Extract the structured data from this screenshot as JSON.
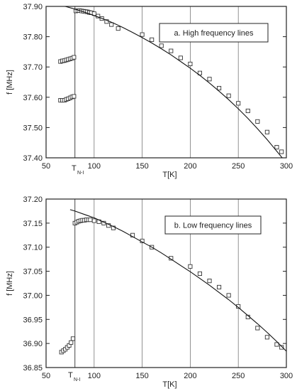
{
  "chart_data": [
    {
      "type": "scatter",
      "title": "",
      "legend": "a. High frequency lines",
      "xlabel": "T[K]",
      "ylabel": "f [MHz]",
      "xlim": [
        50,
        300
      ],
      "ylim": [
        37.4,
        37.9
      ],
      "xticks": [
        "50",
        "100",
        "150",
        "200",
        "250",
        "300"
      ],
      "yticks": [
        "37.40",
        "37.50",
        "37.60",
        "37.70",
        "37.80",
        "37.90"
      ],
      "grid": "vertical",
      "transition_label": {
        "main": "T",
        "sub": "N-I"
      },
      "series": [
        {
          "type": "scatter",
          "points": [
            [
              65,
              37.59
            ],
            [
              67,
              37.59
            ],
            [
              69,
              37.59
            ],
            [
              71,
              37.593
            ],
            [
              73,
              37.595
            ],
            [
              75,
              37.598
            ],
            [
              77,
              37.601
            ],
            [
              79,
              37.603
            ],
            [
              65,
              37.718
            ],
            [
              67,
              37.72
            ],
            [
              69,
              37.721
            ],
            [
              71,
              37.723
            ],
            [
              73,
              37.725
            ],
            [
              75,
              37.727
            ],
            [
              77,
              37.729
            ],
            [
              79,
              37.732
            ],
            [
              81,
              37.885
            ],
            [
              83,
              37.886
            ],
            [
              85,
              37.886
            ],
            [
              87,
              37.885
            ],
            [
              89,
              37.884
            ],
            [
              91,
              37.883
            ],
            [
              93,
              37.882
            ],
            [
              95,
              37.88
            ],
            [
              97,
              37.879
            ],
            [
              100,
              37.876
            ],
            [
              104,
              37.868
            ],
            [
              108,
              37.86
            ],
            [
              113,
              37.85
            ],
            [
              118,
              37.84
            ],
            [
              125,
              37.827
            ],
            [
              150,
              37.807
            ],
            [
              160,
              37.79
            ],
            [
              170,
              37.77
            ],
            [
              180,
              37.753
            ],
            [
              190,
              37.73
            ],
            [
              200,
              37.71
            ],
            [
              210,
              37.68
            ],
            [
              220,
              37.66
            ],
            [
              230,
              37.63
            ],
            [
              240,
              37.605
            ],
            [
              250,
              37.58
            ],
            [
              260,
              37.555
            ],
            [
              270,
              37.52
            ],
            [
              280,
              37.485
            ],
            [
              290,
              37.435
            ],
            [
              295,
              37.42
            ]
          ]
        },
        {
          "type": "line",
          "points": [
            [
              50,
              37.915
            ],
            [
              60,
              37.908
            ],
            [
              70,
              37.9
            ],
            [
              80,
              37.891
            ],
            [
              90,
              37.881
            ],
            [
              100,
              37.87
            ],
            [
              110,
              37.858
            ],
            [
              120,
              37.845
            ],
            [
              130,
              37.83
            ],
            [
              140,
              37.814
            ],
            [
              150,
              37.797
            ],
            [
              160,
              37.779
            ],
            [
              170,
              37.76
            ],
            [
              180,
              37.74
            ],
            [
              190,
              37.718
            ],
            [
              200,
              37.696
            ],
            [
              210,
              37.672
            ],
            [
              220,
              37.647
            ],
            [
              230,
              37.62
            ],
            [
              240,
              37.592
            ],
            [
              250,
              37.562
            ],
            [
              260,
              37.53
            ],
            [
              270,
              37.496
            ],
            [
              280,
              37.46
            ],
            [
              290,
              37.422
            ],
            [
              300,
              37.383
            ]
          ]
        }
      ]
    },
    {
      "type": "scatter",
      "title": "",
      "legend": "b. Low frequency lines",
      "xlabel": "T[K]",
      "ylabel": "f [MHz]",
      "xlim": [
        50,
        300
      ],
      "ylim": [
        36.85,
        37.2
      ],
      "xticks": [
        "50",
        "100",
        "150",
        "200",
        "250",
        "300"
      ],
      "yticks": [
        "36.85",
        "36.90",
        "36.95",
        "37.00",
        "37.05",
        "37.10",
        "37.15",
        "37.20"
      ],
      "grid": "vertical",
      "transition_label": {
        "main": "T",
        "sub": "N-I"
      },
      "series": [
        {
          "type": "scatter",
          "points": [
            [
              66,
              36.882
            ],
            [
              68,
              36.885
            ],
            [
              70,
              36.888
            ],
            [
              72,
              36.892
            ],
            [
              74,
              36.896
            ],
            [
              76,
              36.902
            ],
            [
              78,
              36.91
            ],
            [
              80,
              37.15
            ],
            [
              82,
              37.152
            ],
            [
              84,
              37.154
            ],
            [
              86,
              37.155
            ],
            [
              88,
              37.156
            ],
            [
              90,
              37.156
            ],
            [
              92,
              37.157
            ],
            [
              94,
              37.157
            ],
            [
              96,
              37.157
            ],
            [
              100,
              37.155
            ],
            [
              105,
              37.153
            ],
            [
              110,
              37.15
            ],
            [
              115,
              37.145
            ],
            [
              120,
              37.14
            ],
            [
              140,
              37.125
            ],
            [
              150,
              37.113
            ],
            [
              160,
              37.1
            ],
            [
              180,
              37.077
            ],
            [
              200,
              37.06
            ],
            [
              210,
              37.045
            ],
            [
              220,
              37.03
            ],
            [
              230,
              37.017
            ],
            [
              240,
              37.0
            ],
            [
              250,
              36.977
            ],
            [
              260,
              36.955
            ],
            [
              270,
              36.932
            ],
            [
              280,
              36.913
            ],
            [
              290,
              36.898
            ],
            [
              295,
              36.892
            ]
          ]
        },
        {
          "type": "line",
          "points": [
            [
              75,
              37.178
            ],
            [
              80,
              37.175
            ],
            [
              90,
              37.168
            ],
            [
              100,
              37.161
            ],
            [
              110,
              37.152
            ],
            [
              120,
              37.143
            ],
            [
              130,
              37.133
            ],
            [
              140,
              37.122
            ],
            [
              150,
              37.111
            ],
            [
              160,
              37.1
            ],
            [
              170,
              37.088
            ],
            [
              180,
              37.075
            ],
            [
              190,
              37.062
            ],
            [
              200,
              37.049
            ],
            [
              210,
              37.035
            ],
            [
              220,
              37.021
            ],
            [
              230,
              37.006
            ],
            [
              240,
              36.991
            ],
            [
              250,
              36.975
            ],
            [
              260,
              36.958
            ],
            [
              270,
              36.941
            ],
            [
              280,
              36.923
            ],
            [
              290,
              36.904
            ],
            [
              300,
              36.884
            ]
          ]
        }
      ]
    }
  ]
}
